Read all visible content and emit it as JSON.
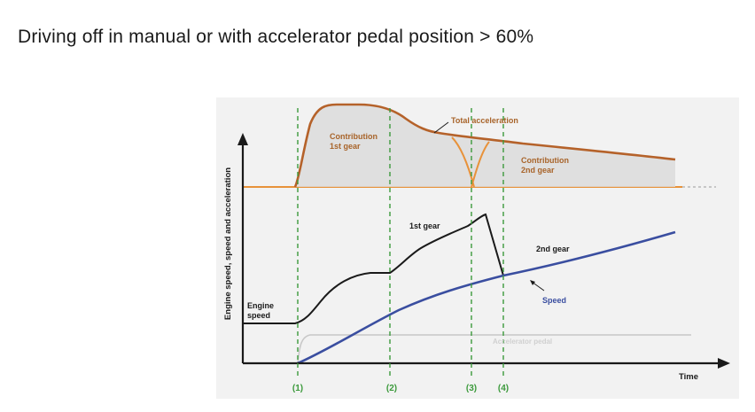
{
  "title": "Driving off in manual or with accelerator pedal position > 60%",
  "diagram": {
    "y_axis_label": "Engine speed, speed and acceleration",
    "x_axis_label": "Time",
    "markers": [
      "(1)",
      "(2)",
      "(3)",
      "(4)"
    ],
    "labels": {
      "total_acceleration": "Total acceleration",
      "contribution_1st_line1": "Contribution",
      "contribution_1st_line2": "1st gear",
      "contribution_2nd_line1": "Contribution",
      "contribution_2nd_line2": "2nd gear",
      "first_gear": "1st gear",
      "second_gear": "2nd gear",
      "engine_speed_line1": "Engine",
      "engine_speed_line2": "speed",
      "speed": "Speed",
      "accelerator_pedal": "Accelerator pedal"
    },
    "colors": {
      "acceleration_total": "#b5622a",
      "acceleration_contribution": "#e8923a",
      "engine_speed": "#1a1a1a",
      "vehicle_speed": "#3a4ea0",
      "marker_line": "#3c9a3c",
      "label_orange": "#a8642a",
      "label_blue": "#3a4ea0",
      "pedal_curve": "#c8c8c8"
    }
  }
}
